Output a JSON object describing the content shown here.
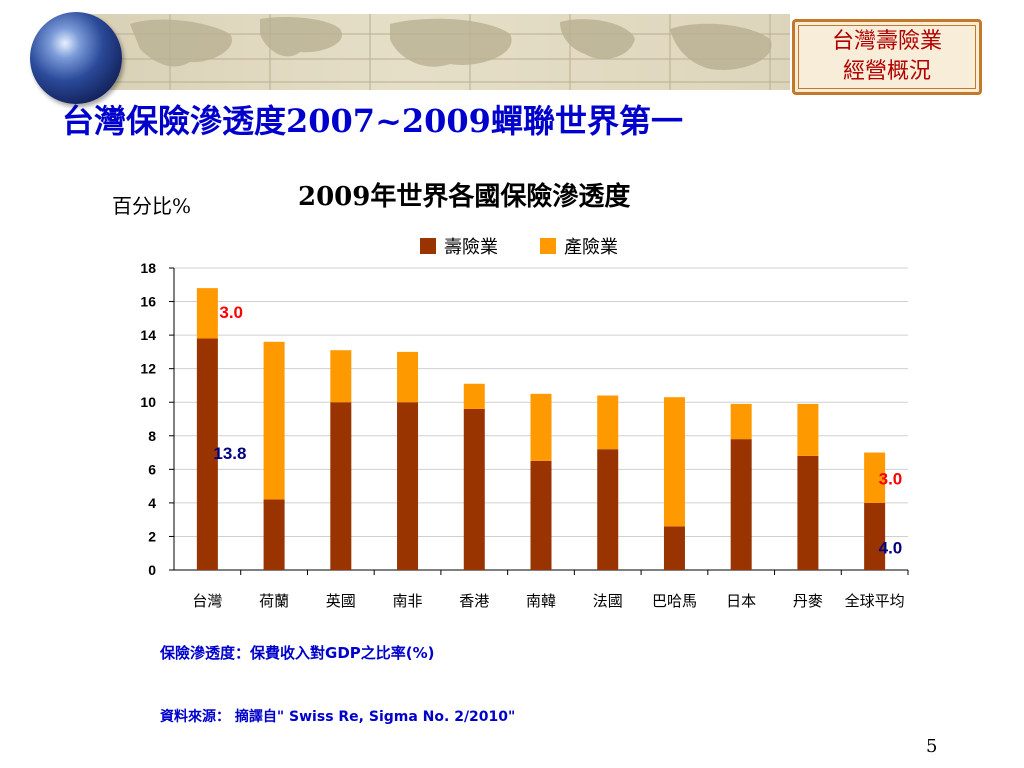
{
  "header": {
    "title": "台灣保險滲透度2007~2009蟬聯世界第一",
    "badge_line1": "台灣壽險業",
    "badge_line2": "經營概況"
  },
  "chart_data": {
    "type": "bar",
    "stacked": true,
    "title": "2009年世界各國保險滲透度",
    "ylabel": "百分比%",
    "xlabel": "",
    "ylim": [
      0,
      18
    ],
    "yticks": [
      0,
      2,
      4,
      6,
      8,
      10,
      12,
      14,
      16,
      18
    ],
    "grid": true,
    "legend": "top-center",
    "categories": [
      "台灣",
      "荷蘭",
      "英國",
      "南非",
      "香港",
      "南韓",
      "法國",
      "巴哈馬",
      "日本",
      "丹麥",
      "全球平均"
    ],
    "series": [
      {
        "name": "壽險業",
        "color": "#993300",
        "values": [
          13.8,
          4.2,
          10.0,
          10.0,
          9.6,
          6.5,
          7.2,
          2.6,
          7.8,
          6.8,
          4.0
        ]
      },
      {
        "name": "產險業",
        "color": "#ff9900",
        "values": [
          3.0,
          9.4,
          3.1,
          3.0,
          1.5,
          4.0,
          3.2,
          7.7,
          2.1,
          3.1,
          3.0
        ]
      }
    ],
    "annotations": [
      {
        "text": "3.0",
        "category": "台灣",
        "color": "#ff0000"
      },
      {
        "text": "13.8",
        "category": "台灣",
        "color": "#000080"
      },
      {
        "text": "3.0",
        "category": "全球平均",
        "color": "#ff0000"
      },
      {
        "text": "4.0",
        "category": "全球平均",
        "color": "#000080"
      }
    ]
  },
  "footer": {
    "note": "保險滲透度：保費收入對GDP之比率(%)",
    "source": "資料來源： 摘譯自\" Swiss Re, Sigma No. 2/2010\"",
    "page_number": "5"
  }
}
